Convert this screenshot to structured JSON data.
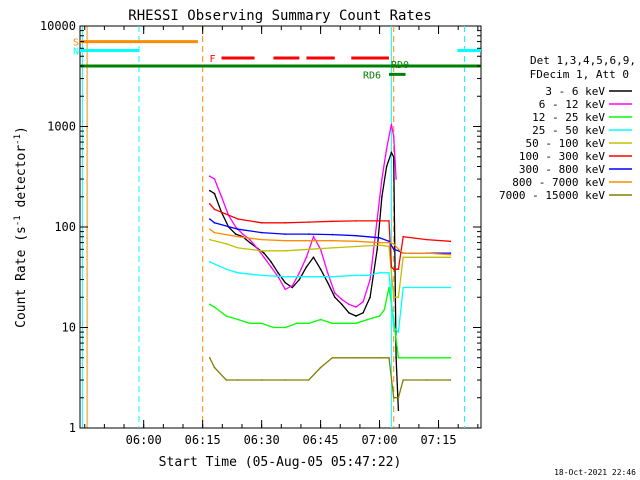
{
  "chart_data": {
    "type": "line",
    "title": "RHESSI Observing Summary Count Rates",
    "xlabel": "Start Time (05-Aug-05 05:47:22)",
    "ylabel_main": "Count Rate (s",
    "ylabel_sup1": "-1",
    "ylabel_mid": " detector",
    "ylabel_sup2": "-1",
    "ylabel_end": ")",
    "yscale": "log",
    "xlim": [
      5.73,
      7.43
    ],
    "ylim": [
      1,
      10000
    ],
    "x_unit": "hours UT",
    "x_ticks": [
      {
        "value": 6.0,
        "label": "06:00"
      },
      {
        "value": 6.25,
        "label": "06:15"
      },
      {
        "value": 6.5,
        "label": "06:30"
      },
      {
        "value": 6.75,
        "label": "06:45"
      },
      {
        "value": 7.0,
        "label": "07:00"
      },
      {
        "value": 7.25,
        "label": "07:15"
      }
    ],
    "y_ticks": [
      {
        "value": 1,
        "label": "1"
      },
      {
        "value": 10,
        "label": "10"
      },
      {
        "value": 100,
        "label": "100"
      },
      {
        "value": 1000,
        "label": "1000"
      },
      {
        "value": 10000,
        "label": "10000"
      }
    ],
    "legend_header": [
      "Det 1,3,4,5,6,9,",
      "FDecim 1, Att 0"
    ],
    "series": [
      {
        "name": "3 - 6 keV",
        "color": "#000000",
        "x": [
          6.28,
          6.3,
          6.33,
          6.36,
          6.39,
          6.42,
          6.45,
          6.48,
          6.51,
          6.54,
          6.57,
          6.6,
          6.63,
          6.66,
          6.69,
          6.72,
          6.75,
          6.78,
          6.81,
          6.84,
          6.87,
          6.9,
          6.93,
          6.96,
          6.99,
          7.01,
          7.03,
          7.05,
          7.06,
          7.07,
          7.08
        ],
        "y": [
          230,
          215,
          140,
          100,
          85,
          80,
          70,
          62,
          55,
          45,
          35,
          28,
          25,
          30,
          40,
          50,
          38,
          28,
          20,
          17,
          14,
          13,
          14,
          20,
          60,
          200,
          400,
          550,
          500,
          5,
          1.5
        ]
      },
      {
        "name": "6 - 12 keV",
        "color": "#ff00ff",
        "x": [
          6.28,
          6.3,
          6.33,
          6.36,
          6.39,
          6.42,
          6.45,
          6.48,
          6.51,
          6.54,
          6.57,
          6.6,
          6.63,
          6.66,
          6.69,
          6.72,
          6.75,
          6.78,
          6.81,
          6.84,
          6.87,
          6.9,
          6.93,
          6.96,
          6.99,
          7.01,
          7.03,
          7.05,
          7.06,
          7.07
        ],
        "y": [
          320,
          300,
          200,
          130,
          100,
          85,
          75,
          62,
          50,
          40,
          32,
          24,
          26,
          35,
          50,
          80,
          60,
          35,
          22,
          19,
          17,
          16,
          18,
          30,
          120,
          300,
          600,
          1050,
          800,
          300
        ]
      },
      {
        "name": "12 - 25 keV",
        "color": "#00ff00",
        "x": [
          6.28,
          6.3,
          6.35,
          6.4,
          6.45,
          6.5,
          6.55,
          6.6,
          6.65,
          6.7,
          6.75,
          6.8,
          6.85,
          6.9,
          6.95,
          7.0,
          7.02,
          7.04,
          7.06,
          7.08,
          7.1,
          7.15,
          7.2,
          7.25,
          7.3
        ],
        "y": [
          17,
          16,
          13,
          12,
          11,
          11,
          10,
          10,
          11,
          11,
          12,
          11,
          11,
          11,
          12,
          13,
          15,
          25,
          12,
          5,
          5,
          5,
          5,
          5,
          5
        ]
      },
      {
        "name": "25 - 50 keV",
        "color": "#00ffff",
        "x": [
          6.28,
          6.35,
          6.4,
          6.5,
          6.6,
          6.7,
          6.8,
          6.9,
          6.95,
          7.0,
          7.04,
          7.06,
          7.08,
          7.1,
          7.2,
          7.3
        ],
        "y": [
          45,
          38,
          35,
          33,
          32,
          32,
          32,
          33,
          33,
          35,
          35,
          10,
          9,
          25,
          25,
          25
        ]
      },
      {
        "name": "50 - 100 keV",
        "color": "#c0c000",
        "x": [
          6.28,
          6.35,
          6.4,
          6.5,
          6.6,
          6.7,
          6.8,
          6.9,
          7.0,
          7.04,
          7.06,
          7.08,
          7.1,
          7.2,
          7.3
        ],
        "y": [
          75,
          68,
          62,
          58,
          58,
          60,
          62,
          64,
          66,
          64,
          20,
          20,
          50,
          50,
          50
        ]
      },
      {
        "name": "100 - 300 keV",
        "color": "#ff0000",
        "x": [
          6.28,
          6.3,
          6.4,
          6.5,
          6.6,
          6.7,
          6.8,
          6.9,
          7.0,
          7.04,
          7.05,
          7.06,
          7.08,
          7.1,
          7.2,
          7.3
        ],
        "y": [
          170,
          150,
          120,
          110,
          110,
          112,
          114,
          115,
          115,
          115,
          40,
          38,
          38,
          80,
          75,
          72
        ]
      },
      {
        "name": "300 - 800 keV",
        "color": "#0000ff",
        "x": [
          6.28,
          6.3,
          6.4,
          6.5,
          6.6,
          6.7,
          6.8,
          6.9,
          7.0,
          7.04,
          7.06,
          7.08,
          7.1,
          7.2,
          7.3
        ],
        "y": [
          120,
          110,
          95,
          88,
          85,
          85,
          84,
          82,
          78,
          72,
          60,
          58,
          55,
          55,
          55
        ]
      },
      {
        "name": "800 - 7000 keV",
        "color": "#ff8c00",
        "x": [
          6.28,
          6.3,
          6.4,
          6.5,
          6.6,
          6.7,
          6.8,
          6.9,
          7.0,
          7.04,
          7.06,
          7.08,
          7.1,
          7.2,
          7.3
        ],
        "y": [
          95,
          88,
          80,
          75,
          73,
          73,
          73,
          72,
          70,
          70,
          68,
          60,
          55,
          55,
          53
        ]
      },
      {
        "name": "7000 - 15000 keV",
        "color": "#808000",
        "x": [
          6.28,
          6.3,
          6.35,
          6.4,
          6.5,
          6.6,
          6.7,
          6.75,
          6.8,
          6.9,
          7.0,
          7.04,
          7.06,
          7.08,
          7.1,
          7.2,
          7.3
        ],
        "y": [
          5,
          4,
          3,
          3,
          3,
          3,
          3,
          4,
          5,
          5,
          5,
          5,
          2,
          2,
          3,
          3,
          3
        ]
      }
    ],
    "flags": [
      {
        "name": "S",
        "color": "#ff8c00",
        "y": 7000,
        "segments": [
          [
            5.73,
            6.23
          ]
        ]
      },
      {
        "name": "N",
        "color": "#00ffff",
        "y": 5700,
        "segments": [
          [
            5.73,
            5.98
          ],
          [
            7.33,
            7.43
          ]
        ]
      },
      {
        "name": "F",
        "color": "#ff0000",
        "y": 4800,
        "segments": [
          [
            6.33,
            6.47
          ],
          [
            6.55,
            6.66
          ],
          [
            6.69,
            6.81
          ],
          [
            6.88,
            7.04
          ]
        ]
      },
      {
        "name": "RD6",
        "color": "#008000",
        "y": 3300,
        "segments": [
          [
            7.04,
            7.11
          ]
        ]
      },
      {
        "name": "RD0",
        "color": "#008000",
        "y": 4000,
        "segments": [
          [
            5.73,
            7.43
          ]
        ]
      }
    ],
    "vlines": [
      {
        "x": 5.74,
        "color": "#00ffff",
        "style": "solid"
      },
      {
        "x": 5.76,
        "color": "#ff8c00",
        "style": "solid"
      },
      {
        "x": 5.98,
        "color": "#00ffff",
        "style": "dashed"
      },
      {
        "x": 6.25,
        "color": "#ff8c00",
        "style": "dashed"
      },
      {
        "x": 7.05,
        "color": "#00ffff",
        "style": "solid"
      },
      {
        "x": 7.06,
        "color": "#ff8c00",
        "style": "dashed"
      },
      {
        "x": 7.36,
        "color": "#00ffff",
        "style": "dashed"
      }
    ],
    "grid": false,
    "legend_position": "right"
  },
  "timestamp": "18-Oct-2021 22:46"
}
